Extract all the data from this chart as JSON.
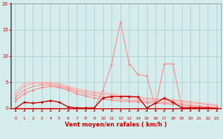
{
  "x": [
    0,
    1,
    2,
    3,
    4,
    5,
    6,
    7,
    8,
    9,
    10,
    11,
    12,
    13,
    14,
    15,
    16,
    17,
    18,
    19,
    20,
    21,
    22,
    23
  ],
  "line_freq1": [
    3.0,
    4.8,
    5.0,
    5.0,
    5.0,
    4.8,
    4.2,
    3.8,
    3.5,
    3.2,
    3.0,
    2.8,
    2.6,
    2.4,
    2.2,
    2.0,
    1.9,
    1.8,
    1.7,
    1.5,
    1.3,
    1.1,
    0.9,
    0.7
  ],
  "line_freq2": [
    2.5,
    4.2,
    4.8,
    4.8,
    4.8,
    4.5,
    4.0,
    3.5,
    3.2,
    2.9,
    2.7,
    2.5,
    2.3,
    2.1,
    1.9,
    1.8,
    1.7,
    1.6,
    1.5,
    1.3,
    1.1,
    0.9,
    0.7,
    0.5
  ],
  "line_freq3": [
    2.0,
    3.5,
    4.2,
    4.5,
    4.5,
    4.2,
    3.8,
    3.2,
    2.8,
    2.5,
    2.2,
    2.0,
    1.8,
    1.6,
    1.5,
    1.4,
    1.3,
    1.2,
    1.1,
    0.9,
    0.7,
    0.5,
    0.3,
    0.2
  ],
  "line_freq4": [
    1.5,
    2.8,
    3.5,
    4.0,
    4.2,
    4.0,
    3.5,
    2.8,
    2.4,
    2.0,
    1.8,
    1.6,
    1.4,
    1.3,
    1.2,
    1.1,
    1.0,
    0.9,
    0.8,
    0.6,
    0.4,
    0.3,
    0.2,
    0.1
  ],
  "line_rafales": [
    0.0,
    0.0,
    0.0,
    0.0,
    0.0,
    0.0,
    0.0,
    0.0,
    0.0,
    0.0,
    3.5,
    8.5,
    16.5,
    8.5,
    6.5,
    6.2,
    0.2,
    8.5,
    8.5,
    0.2,
    0.2,
    0.2,
    0.2,
    0.2
  ],
  "line_moyen": [
    0.0,
    1.2,
    1.0,
    1.2,
    1.5,
    1.2,
    0.3,
    0.1,
    0.1,
    0.1,
    2.0,
    2.3,
    2.3,
    2.3,
    2.2,
    0.1,
    1.0,
    2.0,
    1.2,
    0.1,
    0.1,
    0.1,
    0.1,
    0.0
  ],
  "arrows_angle": [
    225,
    225,
    225,
    225,
    225,
    225,
    225,
    225,
    225,
    225,
    180,
    225,
    315,
    225,
    135,
    270,
    90,
    45,
    135,
    135,
    135,
    135,
    225,
    225
  ],
  "bg_color": "#d4ecec",
  "grid_color": "#a8c8c8",
  "color_light1": "#ffaaaa",
  "color_light2": "#ff9999",
  "color_light3": "#ff8888",
  "color_light4": "#ff7777",
  "color_rafales": "#ff7777",
  "color_moyen": "#cc0000",
  "xlabel": "Vent moyen/en rafales ( km/h )",
  "ylim": [
    0,
    20
  ],
  "yticks": [
    0,
    5,
    10,
    15,
    20
  ],
  "xlim": [
    -0.5,
    23.5
  ]
}
